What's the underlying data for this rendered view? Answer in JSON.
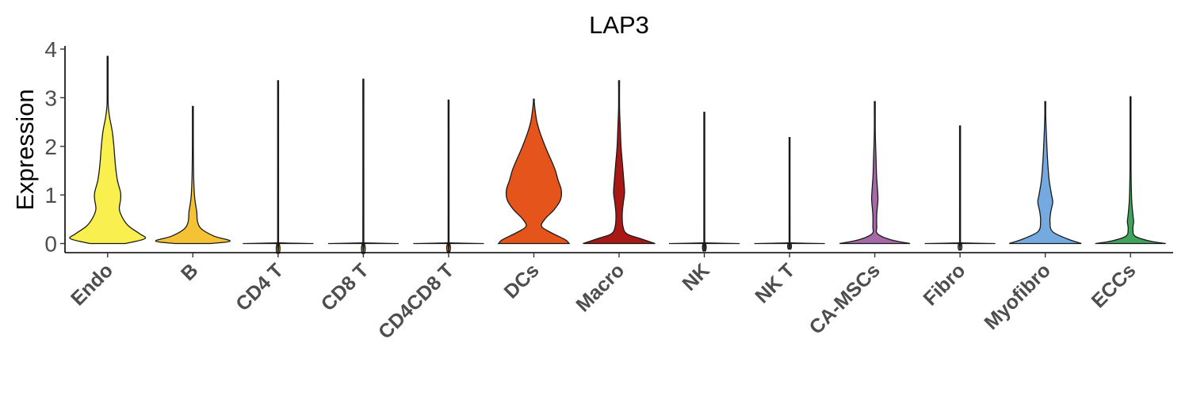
{
  "chart_data": {
    "type": "violin",
    "title": "LAP3",
    "xlabel": "",
    "ylabel": "Expression",
    "ylim": [
      -0.2,
      4.05
    ],
    "yticks": [
      0,
      1,
      2,
      3,
      4
    ],
    "grid": false,
    "legend": "none",
    "categories": [
      "Endo",
      "B",
      "CD4 T",
      "CD8 T",
      "CD4CD8 T",
      "DCs",
      "Macro",
      "NK",
      "NK T",
      "CA-MSCs",
      "Fibro",
      "Myofibro",
      "ECCs"
    ],
    "series": [
      {
        "category": "Endo",
        "color": "#f9ef4f",
        "max": 3.85,
        "profile": [
          [
            0,
            0.45
          ],
          [
            0.1,
            0.95
          ],
          [
            0.2,
            0.82
          ],
          [
            0.35,
            0.55
          ],
          [
            0.5,
            0.4
          ],
          [
            0.7,
            0.3
          ],
          [
            0.9,
            0.33
          ],
          [
            1.05,
            0.33
          ],
          [
            1.3,
            0.25
          ],
          [
            1.6,
            0.2
          ],
          [
            2.0,
            0.16
          ],
          [
            2.3,
            0.12
          ],
          [
            2.6,
            0.05
          ],
          [
            2.8,
            0.02
          ],
          [
            3.0,
            0.008
          ],
          [
            3.85,
            0.003
          ]
        ]
      },
      {
        "category": "B",
        "color": "#f6c235",
        "max": 2.82,
        "profile": [
          [
            0,
            0.45
          ],
          [
            0.05,
            0.95
          ],
          [
            0.15,
            0.55
          ],
          [
            0.3,
            0.22
          ],
          [
            0.45,
            0.12
          ],
          [
            0.65,
            0.1
          ],
          [
            0.8,
            0.07
          ],
          [
            1.0,
            0.04
          ],
          [
            1.4,
            0.02
          ],
          [
            2.0,
            0.01
          ],
          [
            2.82,
            0.003
          ]
        ]
      },
      {
        "category": "CD4 T",
        "color": "#f6a91c",
        "max": 3.35,
        "profile": [
          [
            0,
            0.9
          ],
          [
            0.015,
            0.02
          ],
          [
            0.05,
            0.004
          ],
          [
            3.35,
            0.003
          ]
        ]
      },
      {
        "category": "CD8 T",
        "color": "#f39a1a",
        "max": 3.38,
        "profile": [
          [
            0,
            0.9
          ],
          [
            0.015,
            0.02
          ],
          [
            0.05,
            0.004
          ],
          [
            3.38,
            0.003
          ]
        ]
      },
      {
        "category": "CD4CD8 T",
        "color": "#ee8a20",
        "max": 2.95,
        "profile": [
          [
            0,
            0.9
          ],
          [
            0.015,
            0.02
          ],
          [
            0.05,
            0.004
          ],
          [
            2.95,
            0.003
          ]
        ]
      },
      {
        "category": "DCs",
        "color": "#e5541b",
        "max": 2.97,
        "profile": [
          [
            0,
            0.9
          ],
          [
            0.08,
            0.8
          ],
          [
            0.22,
            0.45
          ],
          [
            0.35,
            0.2
          ],
          [
            0.5,
            0.28
          ],
          [
            0.7,
            0.52
          ],
          [
            0.9,
            0.68
          ],
          [
            1.1,
            0.7
          ],
          [
            1.3,
            0.62
          ],
          [
            1.5,
            0.55
          ],
          [
            1.7,
            0.45
          ],
          [
            1.9,
            0.34
          ],
          [
            2.1,
            0.24
          ],
          [
            2.3,
            0.15
          ],
          [
            2.5,
            0.08
          ],
          [
            2.7,
            0.04
          ],
          [
            2.9,
            0.01
          ],
          [
            2.97,
            0.003
          ]
        ]
      },
      {
        "category": "Macro",
        "color": "#a81814",
        "max": 3.35,
        "profile": [
          [
            0,
            0.92
          ],
          [
            0.1,
            0.55
          ],
          [
            0.2,
            0.2
          ],
          [
            0.35,
            0.1
          ],
          [
            0.6,
            0.08
          ],
          [
            0.85,
            0.11
          ],
          [
            1.05,
            0.14
          ],
          [
            1.3,
            0.12
          ],
          [
            1.6,
            0.09
          ],
          [
            2.0,
            0.05
          ],
          [
            2.4,
            0.03
          ],
          [
            2.8,
            0.01
          ],
          [
            3.35,
            0.003
          ]
        ]
      },
      {
        "category": "NK",
        "color": "#8a2a3a",
        "max": 2.7,
        "profile": [
          [
            0,
            0.9
          ],
          [
            0.015,
            0.02
          ],
          [
            0.05,
            0.004
          ],
          [
            2.7,
            0.003
          ]
        ]
      },
      {
        "category": "NK T",
        "color": "#7a3a5a",
        "max": 2.18,
        "profile": [
          [
            0,
            0.9
          ],
          [
            0.015,
            0.02
          ],
          [
            0.05,
            0.004
          ],
          [
            2.18,
            0.003
          ]
        ]
      },
      {
        "category": "CA-MSCs",
        "color": "#a768a8",
        "max": 2.92,
        "profile": [
          [
            0,
            0.9
          ],
          [
            0.08,
            0.4
          ],
          [
            0.2,
            0.07
          ],
          [
            0.35,
            0.05
          ],
          [
            0.6,
            0.05
          ],
          [
            0.9,
            0.08
          ],
          [
            1.1,
            0.07
          ],
          [
            1.4,
            0.045
          ],
          [
            1.8,
            0.03
          ],
          [
            2.3,
            0.012
          ],
          [
            2.92,
            0.003
          ]
        ]
      },
      {
        "category": "Fibro",
        "color": "#9a8ac0",
        "max": 2.42,
        "profile": [
          [
            0,
            0.9
          ],
          [
            0.015,
            0.02
          ],
          [
            0.05,
            0.004
          ],
          [
            2.42,
            0.003
          ]
        ]
      },
      {
        "category": "Myofibro",
        "color": "#74aae0",
        "max": 2.92,
        "profile": [
          [
            0,
            0.92
          ],
          [
            0.1,
            0.55
          ],
          [
            0.25,
            0.18
          ],
          [
            0.45,
            0.12
          ],
          [
            0.65,
            0.14
          ],
          [
            0.85,
            0.19
          ],
          [
            1.0,
            0.16
          ],
          [
            1.3,
            0.1
          ],
          [
            1.7,
            0.06
          ],
          [
            2.2,
            0.03
          ],
          [
            2.6,
            0.01
          ],
          [
            2.92,
            0.003
          ]
        ]
      },
      {
        "category": "ECCs",
        "color": "#3fa55a",
        "max": 3.02,
        "profile": [
          [
            0,
            0.9
          ],
          [
            0.05,
            0.5
          ],
          [
            0.15,
            0.12
          ],
          [
            0.3,
            0.06
          ],
          [
            0.45,
            0.08
          ],
          [
            0.6,
            0.06
          ],
          [
            0.9,
            0.03
          ],
          [
            1.4,
            0.015
          ],
          [
            2.0,
            0.008
          ],
          [
            3.02,
            0.003
          ]
        ]
      }
    ]
  }
}
